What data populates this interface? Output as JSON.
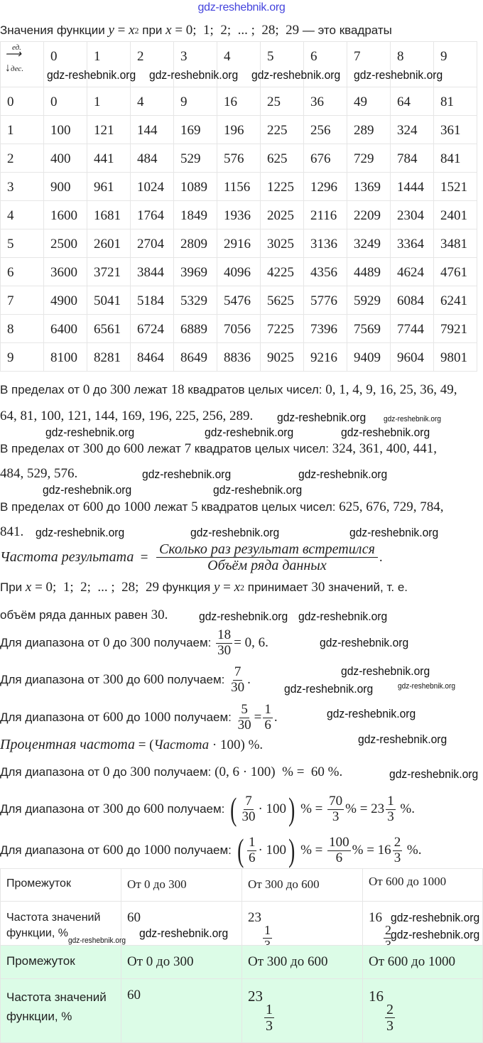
{
  "watermark_title": "gdz-reshebnik.org",
  "watermark": "gdz-reshebnik.org",
  "intro": {
    "t1": "Значения функции",
    "y": "y",
    "eq": "=",
    "x": "x",
    "sup": "2",
    "t2": "при",
    "xvals": "= 0;  1;  2;  ... ;  28;  29",
    "t3": "— это квадраты"
  },
  "squares_table": {
    "corner_top": "ед.",
    "corner_bottom": "дес.",
    "header": [
      "0",
      "1",
      "2",
      "3",
      "4",
      "5",
      "6",
      "7",
      "8",
      "9"
    ],
    "rows": [
      {
        "label": "0",
        "values": [
          "0",
          "1",
          "4",
          "9",
          "16",
          "25",
          "36",
          "49",
          "64",
          "81"
        ]
      },
      {
        "label": "1",
        "values": [
          "100",
          "121",
          "144",
          "169",
          "196",
          "225",
          "256",
          "289",
          "324",
          "361"
        ]
      },
      {
        "label": "2",
        "values": [
          "400",
          "441",
          "484",
          "529",
          "576",
          "625",
          "676",
          "729",
          "784",
          "841"
        ]
      },
      {
        "label": "3",
        "values": [
          "900",
          "961",
          "1024",
          "1089",
          "1156",
          "1225",
          "1296",
          "1369",
          "1444",
          "1521"
        ]
      },
      {
        "label": "4",
        "values": [
          "1600",
          "1681",
          "1764",
          "1849",
          "1936",
          "2025",
          "2116",
          "2209",
          "2304",
          "2401"
        ]
      },
      {
        "label": "5",
        "values": [
          "2500",
          "2601",
          "2704",
          "2809",
          "2916",
          "3025",
          "3136",
          "3249",
          "3364",
          "3481"
        ]
      },
      {
        "label": "6",
        "values": [
          "3600",
          "3721",
          "3844",
          "3969",
          "4096",
          "4225",
          "4356",
          "4489",
          "4624",
          "4761"
        ]
      },
      {
        "label": "7",
        "values": [
          "4900",
          "5041",
          "5184",
          "5329",
          "5476",
          "5625",
          "5776",
          "5929",
          "6084",
          "6241"
        ]
      },
      {
        "label": "8",
        "values": [
          "6400",
          "6561",
          "6724",
          "6889",
          "7056",
          "7225",
          "7396",
          "7569",
          "7744",
          "7921"
        ]
      },
      {
        "label": "9",
        "values": [
          "8100",
          "8281",
          "8464",
          "8649",
          "8836",
          "9025",
          "9216",
          "9409",
          "9604",
          "9801"
        ]
      }
    ]
  },
  "ranges": [
    {
      "t1": "В пределах от",
      "a": "0",
      "t2": "до",
      "b": "300",
      "t3": "лежат",
      "n": "18",
      "t4": "квадратов целых чисел:",
      "list1": "0, 1, 4, 9, 16, 25, 36, 49,",
      "list2": "64, 81, 100, 121, 144, 169, 196, 225, 256, 289."
    },
    {
      "t1": "В пределах от",
      "a": "300",
      "t2": "до",
      "b": "600",
      "t3": "лежат",
      "n": "7",
      "t4": "квадратов целых чисел:",
      "list1": "324, 361, 400, 441,",
      "list2": "484, 529, 576."
    },
    {
      "t1": "В пределах от",
      "a": "600",
      "t2": "до",
      "b": "1000",
      "t3": "лежат",
      "n": "5",
      "t4": "квадратов целых чисел:",
      "list1": "625, 676, 729, 784,",
      "list2": "841."
    }
  ],
  "freq_formula": {
    "lhs": "Частота результата",
    "eq": "=",
    "num": "Сколько раз результат встретился",
    "den": "Объём ряда данных",
    "end": "."
  },
  "volume": {
    "t1": "При",
    "x": "x",
    "xvals": "= 0;  1;  2;  ... ;  28;  29",
    "t2": "функция",
    "y": "y",
    "eq": "=",
    "x2": "x",
    "sup": "2",
    "t3": "принимает",
    "n": "30",
    "t4": "значений, т. е.",
    "t5": "объём ряда данных равен",
    "n2": "30",
    "end": "."
  },
  "calc": [
    {
      "t1": "Для диапазона от",
      "a": "0",
      "t2": "до",
      "b": "300",
      "t3": "получаем:",
      "num": "18",
      "den": "30",
      "rest": "= 0, 6."
    },
    {
      "t1": "Для диапазона от",
      "a": "300",
      "t2": "до",
      "b": "600",
      "t3": "получаем:",
      "num": "7",
      "den": "30",
      "rest": "."
    },
    {
      "t1": "Для диапазона от",
      "a": "600",
      "t2": "до",
      "b": "1000",
      "t3": "получаем:",
      "num": "5",
      "den": "30",
      "mid": "=",
      "num2": "1",
      "den2": "6",
      "rest": "."
    }
  ],
  "percent_formula": {
    "lhs": "Процентная частота",
    "eq": "= (",
    "inner": "Частота",
    "dot": "· 100)",
    "end": "%."
  },
  "percent_calc": [
    {
      "t1": "Для диапазона от",
      "a": "0",
      "t2": "до",
      "b": "300",
      "t3": "получаем:",
      "expr": "(0, 6 · 100)  % =  60 %."
    },
    {
      "t1": "Для диапазона от",
      "a": "300",
      "t2": "до",
      "b": "600",
      "t3": "получаем:",
      "num": "7",
      "den": "30",
      "mul": "· 100",
      "pct": "% =",
      "rnum": "70",
      "rden": "3",
      "pct2": "% = 23",
      "fnum": "1",
      "fden": "3",
      "end": "%."
    },
    {
      "t1": "Для диапазона от",
      "a": "600",
      "t2": "до",
      "b": "1000",
      "t3": "получаем:",
      "num": "1",
      "den": "6",
      "mul": "· 100",
      "pct": "% =",
      "rnum": "100",
      "rden": "6",
      "pct2": "% = 16",
      "fnum": "2",
      "fden": "3",
      "end": "%."
    }
  ],
  "result_table": {
    "header": [
      "Промежуток",
      "От 0 до 300",
      "От 300 до 600",
      "От 600 до 1000"
    ],
    "row_label": "Частота значений функции, %",
    "v1": "60",
    "v2": {
      "whole": "23",
      "num": "1",
      "den": "3"
    },
    "v3": {
      "whole": "16",
      "num": "2",
      "den": "3"
    }
  },
  "colors": {
    "highlight": "#dcfce7",
    "watermark_title": "#4444dd"
  }
}
